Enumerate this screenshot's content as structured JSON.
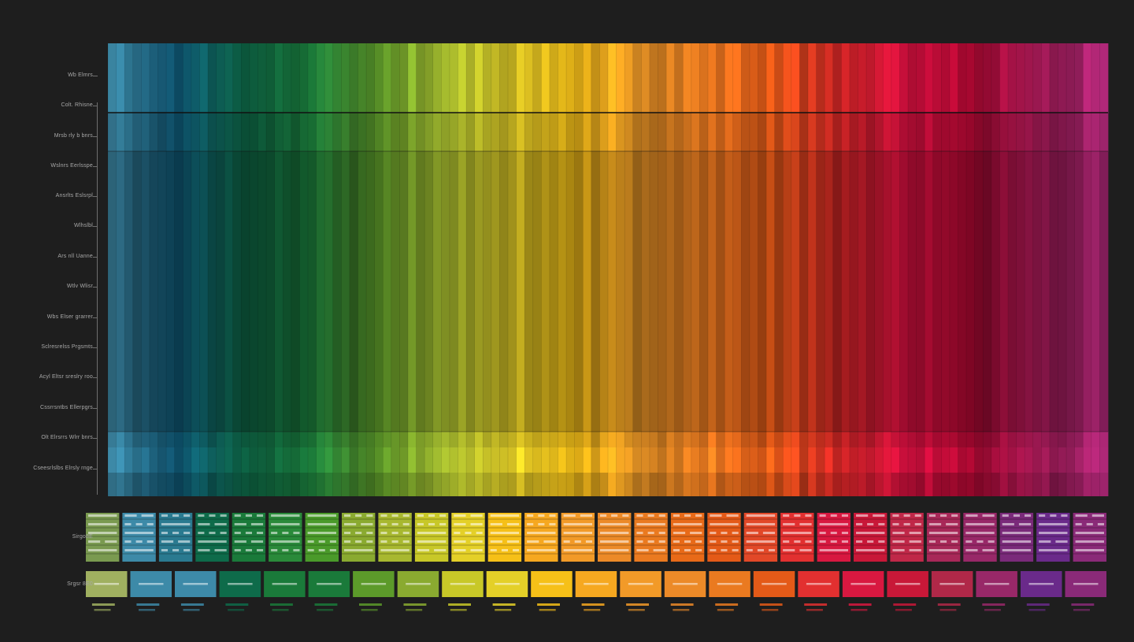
{
  "chart_data": {
    "type": "heatmap",
    "description_free": true,
    "title": "",
    "row_labels": [
      "Wb Elmrs",
      "Colt. Rhisne",
      "Mrsb rly b bnrs",
      "Wslnrs Eerlsspe",
      "Ansrlts Eslsrpl",
      "Wlhslbl",
      "Ars nll Uanne",
      "Wtlv Wlisr",
      "Wbs Elser grarrer",
      "Sclresrelss Prgsmts",
      "Acyl Eltsr sreslry roo",
      "Cssrrsntbs Ellerpgrs",
      "Olt Elrsrrs Wlrr bnrs",
      "Cseesrlslbs Elrsly rnge"
    ],
    "legend_row_label": "Sirgo8E",
    "bottom_row_label": "Srgsr 8E0",
    "gradient_stops": [
      "#3d8aa8",
      "#0f5a78",
      "#0e6b4a",
      "#1a7a3a",
      "#5c9a2a",
      "#a8c030",
      "#e4d028",
      "#f6c018",
      "#f29a28",
      "#ec7a20",
      "#e85a18",
      "#e02828",
      "#d81040",
      "#a80830",
      "#9a1850",
      "#b02878"
    ],
    "column_count": 120,
    "legend_groups": [
      {
        "color": "#7a9a50"
      },
      {
        "color": "#3d8aa8"
      },
      {
        "color": "#2a7a90"
      },
      {
        "color": "#0e6b4a"
      },
      {
        "color": "#1a7a3a"
      },
      {
        "color": "#2a8a3a"
      },
      {
        "color": "#4a9a2a"
      },
      {
        "color": "#8aaa30"
      },
      {
        "color": "#a8b830"
      },
      {
        "color": "#c8c828"
      },
      {
        "color": "#e4d028"
      },
      {
        "color": "#f6c018"
      },
      {
        "color": "#f6a820"
      },
      {
        "color": "#f29a28"
      },
      {
        "color": "#ec8a28"
      },
      {
        "color": "#ea7a20"
      },
      {
        "color": "#e86a18"
      },
      {
        "color": "#e45a18"
      },
      {
        "color": "#e24828"
      },
      {
        "color": "#e23030"
      },
      {
        "color": "#d81840"
      },
      {
        "color": "#c81838"
      },
      {
        "color": "#c02848"
      },
      {
        "color": "#a82858"
      },
      {
        "color": "#982868"
      },
      {
        "color": "#7a2a7a"
      },
      {
        "color": "#6a2a8a"
      },
      {
        "color": "#8a2a78"
      }
    ],
    "swatches": [
      {
        "color": "#a0b060"
      },
      {
        "color": "#3d8aa8"
      },
      {
        "color": "#3d8aa8"
      },
      {
        "color": "#0e6b4a"
      },
      {
        "color": "#1a7a3a"
      },
      {
        "color": "#1a7a3a"
      },
      {
        "color": "#5c9a2a"
      },
      {
        "color": "#8aaa30"
      },
      {
        "color": "#c8c828"
      },
      {
        "color": "#e4d028"
      },
      {
        "color": "#f6c018"
      },
      {
        "color": "#f6a820"
      },
      {
        "color": "#f29a28"
      },
      {
        "color": "#ec8a28"
      },
      {
        "color": "#ea7a20"
      },
      {
        "color": "#e45a18"
      },
      {
        "color": "#e23030"
      },
      {
        "color": "#d81840"
      },
      {
        "color": "#c81838"
      },
      {
        "color": "#b02848"
      },
      {
        "color": "#982868"
      },
      {
        "color": "#6a2a8a"
      },
      {
        "color": "#8a2a78"
      }
    ],
    "grid": false,
    "legend": "bottom"
  }
}
